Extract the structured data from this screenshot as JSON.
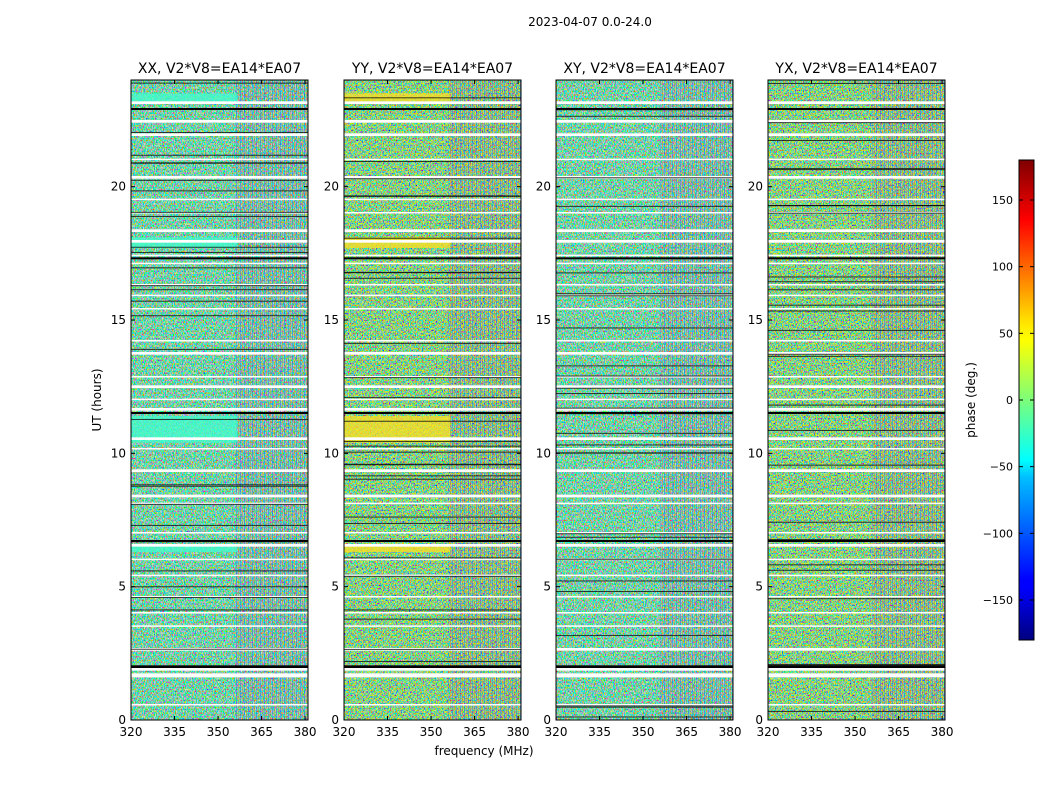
{
  "chart_data": {
    "type": "heatmap",
    "suptitle": "2023-04-07 0.0-24.0",
    "xlabel": "frequency (MHz)",
    "ylabel": "UT (hours)",
    "xlim": [
      320,
      381
    ],
    "ylim": [
      0,
      24
    ],
    "xticks": [
      320,
      335,
      350,
      365,
      380
    ],
    "yticks": [
      0,
      5,
      10,
      15,
      20
    ],
    "panels": [
      {
        "title": "XX, V2*V8=EA14*EA07",
        "pol": "XX"
      },
      {
        "title": "YY, V2*V8=EA14*EA07",
        "pol": "YY"
      },
      {
        "title": "XY, V2*V8=EA14*EA07",
        "pol": "XY"
      },
      {
        "title": "YX, V2*V8=EA14*EA07",
        "pol": "YX"
      }
    ],
    "colorbar": {
      "label": "phase (deg.)",
      "colormap": "jet",
      "range": [
        -180,
        180
      ],
      "ticks": [
        -150,
        -100,
        -50,
        0,
        50,
        100,
        150
      ],
      "tick_labels": [
        "−150",
        "−100",
        "−50",
        "0",
        "50",
        "100",
        "150"
      ]
    },
    "flagged_bands_ut": [
      [
        0.55,
        0.6
      ],
      [
        1.6,
        1.75
      ],
      [
        1.85,
        2.0
      ],
      [
        2.6,
        2.7
      ],
      [
        3.5,
        3.55
      ],
      [
        4.0,
        4.05
      ],
      [
        4.6,
        4.65
      ],
      [
        5.4,
        5.45
      ],
      [
        6.0,
        6.05
      ],
      [
        6.5,
        6.6
      ],
      [
        7.0,
        7.05
      ],
      [
        8.1,
        8.15
      ],
      [
        8.35,
        8.45
      ],
      [
        9.3,
        9.4
      ],
      [
        10.15,
        10.2
      ],
      [
        10.5,
        10.6
      ],
      [
        11.6,
        11.7
      ],
      [
        12.0,
        12.05
      ],
      [
        12.45,
        12.55
      ],
      [
        12.85,
        12.9
      ],
      [
        13.7,
        13.8
      ],
      [
        14.2,
        14.25
      ],
      [
        15.4,
        15.45
      ],
      [
        15.9,
        15.95
      ],
      [
        16.3,
        16.35
      ],
      [
        17.1,
        17.15
      ],
      [
        17.4,
        17.45
      ],
      [
        17.9,
        18.0
      ],
      [
        18.3,
        18.4
      ],
      [
        19.0,
        19.05
      ],
      [
        19.5,
        19.55
      ],
      [
        20.3,
        20.4
      ],
      [
        21.0,
        21.05
      ],
      [
        21.9,
        22.0
      ],
      [
        22.4,
        22.5
      ],
      [
        23.1,
        23.2
      ]
    ],
    "dark_lines_ut": [
      [
        1.95,
        2.05
      ],
      [
        6.7,
        6.75
      ],
      [
        11.5,
        11.55
      ],
      [
        17.3,
        17.35
      ],
      [
        22.9,
        22.95
      ]
    ]
  }
}
